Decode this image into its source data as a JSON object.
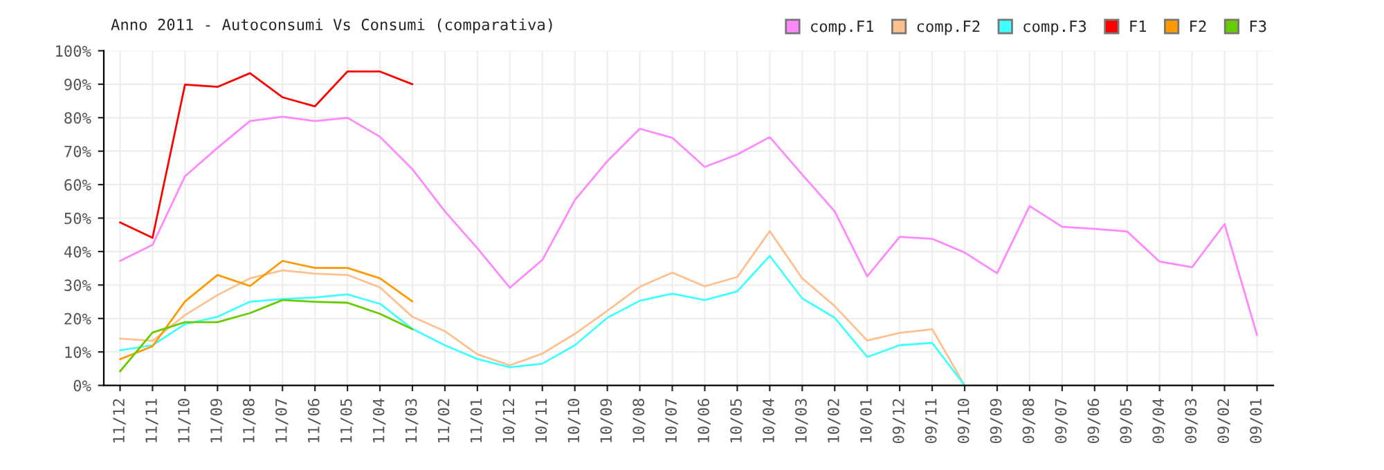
{
  "chart_data": {
    "type": "line",
    "title": "Anno 2011 - Autoconsumi Vs Consumi (comparativa)",
    "categories": [
      "11/12",
      "11/11",
      "11/10",
      "11/09",
      "11/08",
      "11/07",
      "11/06",
      "11/05",
      "11/04",
      "11/03",
      "11/02",
      "11/01",
      "10/12",
      "10/11",
      "10/10",
      "10/09",
      "10/08",
      "10/07",
      "10/06",
      "10/05",
      "10/04",
      "10/03",
      "10/02",
      "10/01",
      "09/12",
      "09/11",
      "09/10",
      "09/09",
      "09/08",
      "09/07",
      "09/06",
      "09/05",
      "09/04",
      "09/03",
      "09/02",
      "09/01"
    ],
    "series": [
      {
        "name": "comp.F1",
        "color": "#ff88ff",
        "values": [
          37.2,
          42,
          62.5,
          71,
          79,
          80.3,
          79,
          80,
          74.3,
          64.6,
          52,
          41,
          29.2,
          37.5,
          55.4,
          67,
          76.7,
          74,
          65.3,
          69,
          74.2,
          63,
          52,
          32.6,
          44.4,
          43.8,
          39.7,
          33.5,
          53.6,
          47.4,
          46.8,
          46,
          37,
          35.3,
          48.2,
          15
        ]
      },
      {
        "name": "comp.F2",
        "color": "#ffc090",
        "values": [
          14,
          13.3,
          21,
          27,
          32,
          34.4,
          33.4,
          33,
          29.3,
          20.5,
          16.2,
          9.3,
          6,
          9.5,
          15.4,
          22.3,
          29.5,
          33.7,
          29.6,
          32.4,
          46.1,
          32,
          23.7,
          13.4,
          15.7,
          16.8,
          0,
          null,
          null,
          null,
          null,
          null,
          null,
          null,
          null,
          null
        ]
      },
      {
        "name": "comp.F3",
        "color": "#40ffff",
        "values": [
          10.5,
          12,
          18.3,
          20.5,
          25,
          25.8,
          26.3,
          27.2,
          24.4,
          16.9,
          12,
          7.9,
          5.4,
          6.5,
          12,
          20.2,
          25.3,
          27.4,
          25.5,
          28.1,
          38.7,
          26,
          20.2,
          8.5,
          12,
          12.7,
          0,
          null,
          null,
          null,
          null,
          null,
          null,
          null,
          null,
          null
        ]
      },
      {
        "name": "F1",
        "color": "#ff0000",
        "values": [
          48.7,
          44.1,
          89.9,
          89.2,
          93.3,
          86.1,
          83.4,
          93.8,
          93.8,
          90,
          null,
          null,
          null,
          null,
          null,
          null,
          null,
          null,
          null,
          null,
          null,
          null,
          null,
          null,
          null,
          null,
          null,
          null,
          null,
          null,
          null,
          null,
          null,
          null,
          null,
          null
        ]
      },
      {
        "name": "F2",
        "color": "#ff9900",
        "values": [
          7.8,
          11.7,
          25.1,
          33,
          29.7,
          37.2,
          35.1,
          35.1,
          32,
          25.1,
          null,
          null,
          null,
          null,
          null,
          null,
          null,
          null,
          null,
          null,
          null,
          null,
          null,
          null,
          null,
          null,
          null,
          null,
          null,
          null,
          null,
          null,
          null,
          null,
          null,
          null
        ]
      },
      {
        "name": "F3",
        "color": "#66cc00",
        "values": [
          4.2,
          15.8,
          18.9,
          18.9,
          21.6,
          25.5,
          25,
          24.7,
          21.4,
          16.8,
          null,
          null,
          null,
          null,
          null,
          null,
          null,
          null,
          null,
          null,
          null,
          null,
          null,
          null,
          null,
          null,
          null,
          null,
          null,
          null,
          null,
          null,
          null,
          null,
          null,
          null
        ]
      }
    ],
    "ylim": [
      0,
      100
    ],
    "yticks": [
      {
        "value": 0,
        "label": "0%"
      },
      {
        "value": 10,
        "label": "10%"
      },
      {
        "value": 20,
        "label": "20%"
      },
      {
        "value": 30,
        "label": "30%"
      },
      {
        "value": 40,
        "label": "40%"
      },
      {
        "value": 50,
        "label": "50%"
      },
      {
        "value": 60,
        "label": "60%"
      },
      {
        "value": 70,
        "label": "70%"
      },
      {
        "value": 80,
        "label": "80%"
      },
      {
        "value": 90,
        "label": "90%"
      },
      {
        "value": 100,
        "label": "100%"
      }
    ],
    "grid": true,
    "legend": "top right",
    "marker": "none",
    "line_style": "solid"
  }
}
